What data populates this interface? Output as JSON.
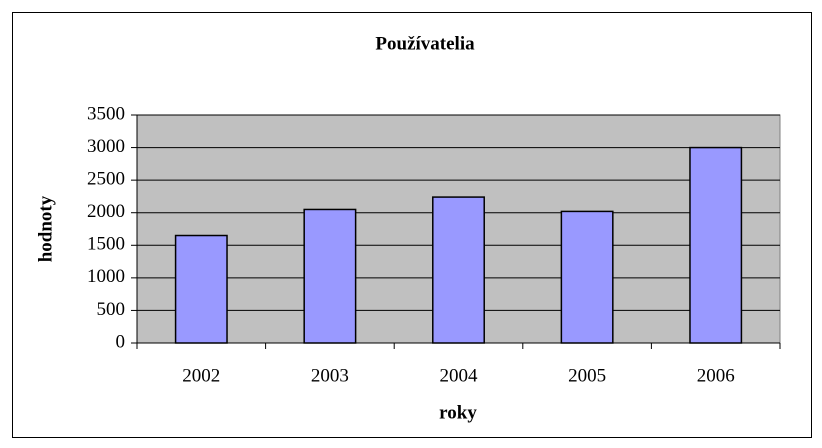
{
  "chart_data": {
    "type": "bar",
    "title": "Používatelia",
    "x_label": "roky",
    "y_label": "hodnoty",
    "categories": [
      "2002",
      "2003",
      "2004",
      "2005",
      "2006"
    ],
    "values": [
      1650,
      2050,
      2240,
      2020,
      3000
    ],
    "color": "#9999ff",
    "ylim": [
      0,
      3500
    ],
    "yticks": [
      0,
      500,
      1000,
      1500,
      2000,
      2500,
      3000,
      3500
    ],
    "grid": true
  }
}
